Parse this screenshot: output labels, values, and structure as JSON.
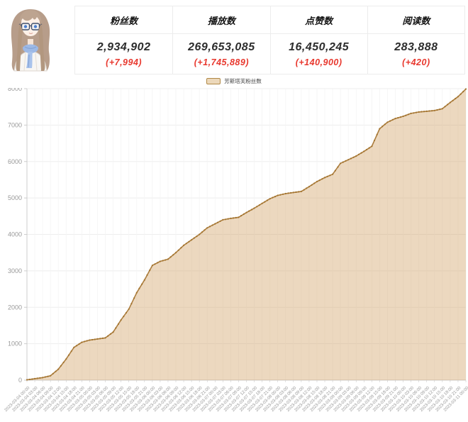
{
  "header": {
    "cards": [
      {
        "label": "粉丝数",
        "value": "2,934,902",
        "delta": "(+7,994)"
      },
      {
        "label": "播放数",
        "value": "269,653,085",
        "delta": "(+1,745,889)"
      },
      {
        "label": "点赞数",
        "value": "16,450,245",
        "delta": "(+140,900)"
      },
      {
        "label": "阅读数",
        "value": "283,888",
        "delta": "(+420)"
      }
    ],
    "delta_color": "#e8382e",
    "avatar_icon": "anime-girl-avatar"
  },
  "chart_data": {
    "type": "area",
    "title": "",
    "legend": {
      "label": "芳斯塔芙粉丝数",
      "position": "top-center",
      "swatch_fill": "#ecd8ba",
      "swatch_border": "#b08844"
    },
    "line_color": "#ab7d3e",
    "dot_color": "#a4752f",
    "area_fill_rgba": "rgba(210,163,102,0.42)",
    "grid": true,
    "x_label_rotate": 45,
    "ylim": [
      0,
      8000
    ],
    "y_ticks": [
      0,
      1000,
      2000,
      3000,
      4000,
      5000,
      6000,
      7000,
      8000
    ],
    "x": [
      "2023-03-04 00:00",
      "2023-03-04 03:00",
      "2023-03-04 06:00",
      "2023-03-04 09:00",
      "2023-03-04 12:00",
      "2023-03-04 15:00",
      "2023-03-04 18:00",
      "2023-03-04 21:00",
      "2023-03-05 00:00",
      "2023-03-05 03:00",
      "2023-03-05 06:00",
      "2023-03-05 09:00",
      "2023-03-05 12:00",
      "2023-03-05 15:00",
      "2023-03-05 18:00",
      "2023-03-05 21:00",
      "2023-03-06 00:00",
      "2023-03-06 03:00",
      "2023-03-06 06:00",
      "2023-03-06 09:00",
      "2023-03-06 12:00",
      "2023-03-06 15:00",
      "2023-03-06 18:00",
      "2023-03-06 21:00",
      "2023-03-07 00:00",
      "2023-03-07 03:00",
      "2023-03-07 06:00",
      "2023-03-07 09:00",
      "2023-03-07 12:00",
      "2023-03-07 15:00",
      "2023-03-07 18:00",
      "2023-03-07 21:00",
      "2023-03-08 00:00",
      "2023-03-08 03:00",
      "2023-03-08 06:00",
      "2023-03-08 09:00",
      "2023-03-08 12:00",
      "2023-03-08 15:00",
      "2023-03-08 18:00",
      "2023-03-08 21:00",
      "2023-03-09 00:00",
      "2023-03-09 03:00",
      "2023-03-09 06:00",
      "2023-03-09 09:00",
      "2023-03-09 12:00",
      "2023-03-09 15:00",
      "2023-03-09 18:00",
      "2023-03-09 21:00",
      "2023-03-10 00:00",
      "2023-03-10 03:00",
      "2023-03-10 06:00",
      "2023-03-10 09:00",
      "2023-03-10 12:00",
      "2023-03-10 15:00",
      "2023-03-10 18:00",
      "2023-03-10 21:00",
      "2023-03-11 00:00"
    ],
    "values": [
      10,
      40,
      70,
      120,
      300,
      580,
      900,
      1040,
      1100,
      1130,
      1160,
      1320,
      1650,
      1950,
      2400,
      2750,
      3150,
      3260,
      3320,
      3500,
      3700,
      3850,
      4000,
      4180,
      4290,
      4400,
      4440,
      4470,
      4600,
      4720,
      4850,
      4980,
      5070,
      5120,
      5150,
      5180,
      5310,
      5450,
      5560,
      5650,
      5950,
      6050,
      6150,
      6280,
      6420,
      6900,
      7080,
      7180,
      7240,
      7320,
      7360,
      7380,
      7400,
      7450,
      7620,
      7780,
      7990
    ]
  }
}
